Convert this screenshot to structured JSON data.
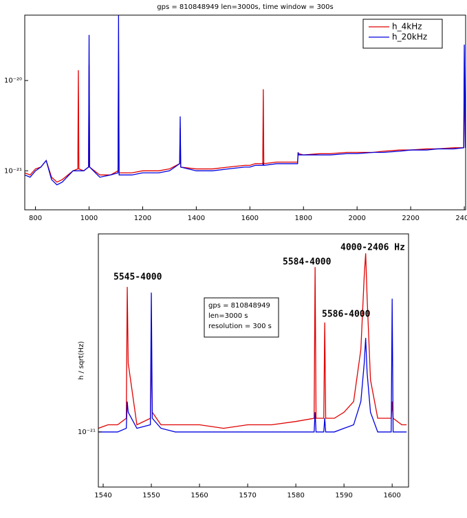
{
  "chart_data": [
    {
      "type": "line",
      "title": "gps =  810848949   len=3000s, time window = 300s",
      "log_y": true,
      "legend": "upper right",
      "x": [
        760,
        780,
        800,
        820,
        840,
        860,
        880,
        900,
        940,
        958,
        960,
        962,
        980,
        998,
        1000,
        1002,
        1040,
        1080,
        1108,
        1110,
        1112,
        1160,
        1200,
        1260,
        1300,
        1338,
        1340,
        1342,
        1400,
        1460,
        1520,
        1580,
        1600,
        1620,
        1648,
        1650,
        1652,
        1700,
        1760,
        1778,
        1780,
        1782,
        1800,
        1860,
        1900,
        1960,
        2000,
        2060,
        2100,
        2160,
        2200,
        2260,
        2300,
        2360,
        2398,
        2400,
        2404
      ],
      "series": [
        {
          "name": "h_4kHz",
          "color": "#e00000",
          "values": [
            9.5e-22,
            9e-22,
            1.05e-21,
            1.1e-21,
            1.3e-21,
            8.5e-22,
            7.5e-22,
            8e-22,
            1e-21,
            1.05e-21,
            1.3e-20,
            1.05e-21,
            1e-21,
            1.1e-21,
            1.5e-20,
            1.1e-21,
            9e-22,
            9e-22,
            1e-21,
            2e-20,
            9.5e-22,
            9.5e-22,
            1e-21,
            1e-21,
            1.05e-21,
            1.2e-21,
            3e-21,
            1.1e-21,
            1.05e-21,
            1.05e-21,
            1.1e-21,
            1.15e-21,
            1.15e-21,
            1.2e-21,
            1.2e-21,
            8e-21,
            1.2e-21,
            1.25e-21,
            1.25e-21,
            1.25e-21,
            1.6e-21,
            1.55e-21,
            1.5e-21,
            1.55e-21,
            1.55e-21,
            1.6e-21,
            1.6e-21,
            1.6e-21,
            1.65e-21,
            1.7e-21,
            1.7e-21,
            1.75e-21,
            1.75e-21,
            1.8e-21,
            1.8e-21,
            1.2e-20,
            1.8e-21
          ]
        },
        {
          "name": "h_20kHz",
          "color": "#0000e0",
          "values": [
            9e-22,
            8.5e-22,
            1e-21,
            1.1e-21,
            1.3e-21,
            8e-22,
            7e-22,
            7.5e-22,
            1e-21,
            1e-21,
            1e-21,
            1e-21,
            1e-21,
            1.1e-21,
            3.2e-20,
            1.1e-21,
            8.5e-22,
            9e-22,
            9.5e-22,
            5.3e-20,
            9e-22,
            9e-22,
            9.5e-22,
            9.5e-22,
            1e-21,
            1.2e-21,
            4e-21,
            1.1e-21,
            1e-21,
            1e-21,
            1.05e-21,
            1.1e-21,
            1.1e-21,
            1.15e-21,
            1.15e-21,
            1.2e-21,
            1.15e-21,
            1.2e-21,
            1.2e-21,
            1.2e-21,
            1.6e-21,
            1.5e-21,
            1.5e-21,
            1.5e-21,
            1.5e-21,
            1.55e-21,
            1.55e-21,
            1.6e-21,
            1.6e-21,
            1.65e-21,
            1.7e-21,
            1.7e-21,
            1.75e-21,
            1.75e-21,
            1.8e-21,
            2.5e-20,
            1.8e-21
          ]
        }
      ],
      "xlim": [
        760,
        2405
      ],
      "ylim": [
        3.7e-22,
        5.3e-20
      ],
      "xticks": [
        800,
        1000,
        1200,
        1400,
        1600,
        1800,
        2000,
        2200,
        2400
      ],
      "yticks": [
        {
          "value": 1e-20,
          "label": "10⁻²⁰"
        },
        {
          "value": 1e-21,
          "label": "10⁻²¹"
        }
      ]
    },
    {
      "type": "line",
      "ylabel": "h / sqrt(Hz)",
      "log_y": true,
      "x": [
        1539,
        1541,
        1543,
        1544.8,
        1545,
        1545.2,
        1547,
        1549.8,
        1550,
        1550.2,
        1552,
        1555,
        1560,
        1565,
        1570,
        1575,
        1580,
        1583.8,
        1584,
        1584.2,
        1585.8,
        1586,
        1586.2,
        1588,
        1590,
        1592,
        1593.5,
        1594.2,
        1594.5,
        1594.8,
        1595.5,
        1597,
        1599.8,
        1600,
        1600.2,
        1602,
        1603
      ],
      "series": [
        {
          "color": "#e00000",
          "values": [
            1.05e-21,
            1.1e-21,
            1.1e-21,
            1.2e-21,
            6.9e-21,
            2.5e-21,
            1.1e-21,
            1.2e-21,
            3e-21,
            1.3e-21,
            1.1e-21,
            1.1e-21,
            1.1e-21,
            1.05e-21,
            1.1e-21,
            1.1e-21,
            1.15e-21,
            1.2e-21,
            9e-21,
            1.2e-21,
            1.2e-21,
            4.3e-21,
            1.2e-21,
            1.2e-21,
            1.3e-21,
            1.5e-21,
            3e-21,
            8e-21,
            1.08e-20,
            6e-21,
            2e-21,
            1.2e-21,
            1.2e-21,
            1.5e-21,
            1.2e-21,
            1.1e-21,
            1.1e-21
          ]
        },
        {
          "color": "#0000e0",
          "values": [
            1e-21,
            1e-21,
            1e-21,
            1.05e-21,
            1.5e-21,
            1.3e-21,
            1.05e-21,
            1.1e-21,
            6.4e-21,
            1.2e-21,
            1.05e-21,
            1e-21,
            1e-21,
            1e-21,
            1e-21,
            1e-21,
            1e-21,
            1e-21,
            1.3e-21,
            1e-21,
            1e-21,
            1.2e-21,
            1e-21,
            1e-21,
            1.05e-21,
            1.1e-21,
            1.5e-21,
            2.5e-21,
            3.5e-21,
            2.2e-21,
            1.3e-21,
            1e-21,
            1e-21,
            5.9e-21,
            1e-21,
            1e-21,
            1e-21
          ]
        }
      ],
      "xlim": [
        1539,
        1603.4
      ],
      "ylim": [
        4.8e-22,
        1.4e-20
      ],
      "xticks": [
        1540,
        1550,
        1560,
        1570,
        1580,
        1590,
        1600
      ],
      "yticks": [
        {
          "value": 1e-21,
          "label": "10⁻²¹"
        }
      ],
      "annotations": [
        "5545-4000",
        "5584-4000",
        "5586-4000",
        "4000-2406  Hz"
      ],
      "info_box": [
        "gps = 810848949",
        "len=3000 s",
        "resolution = 300 s"
      ]
    }
  ]
}
